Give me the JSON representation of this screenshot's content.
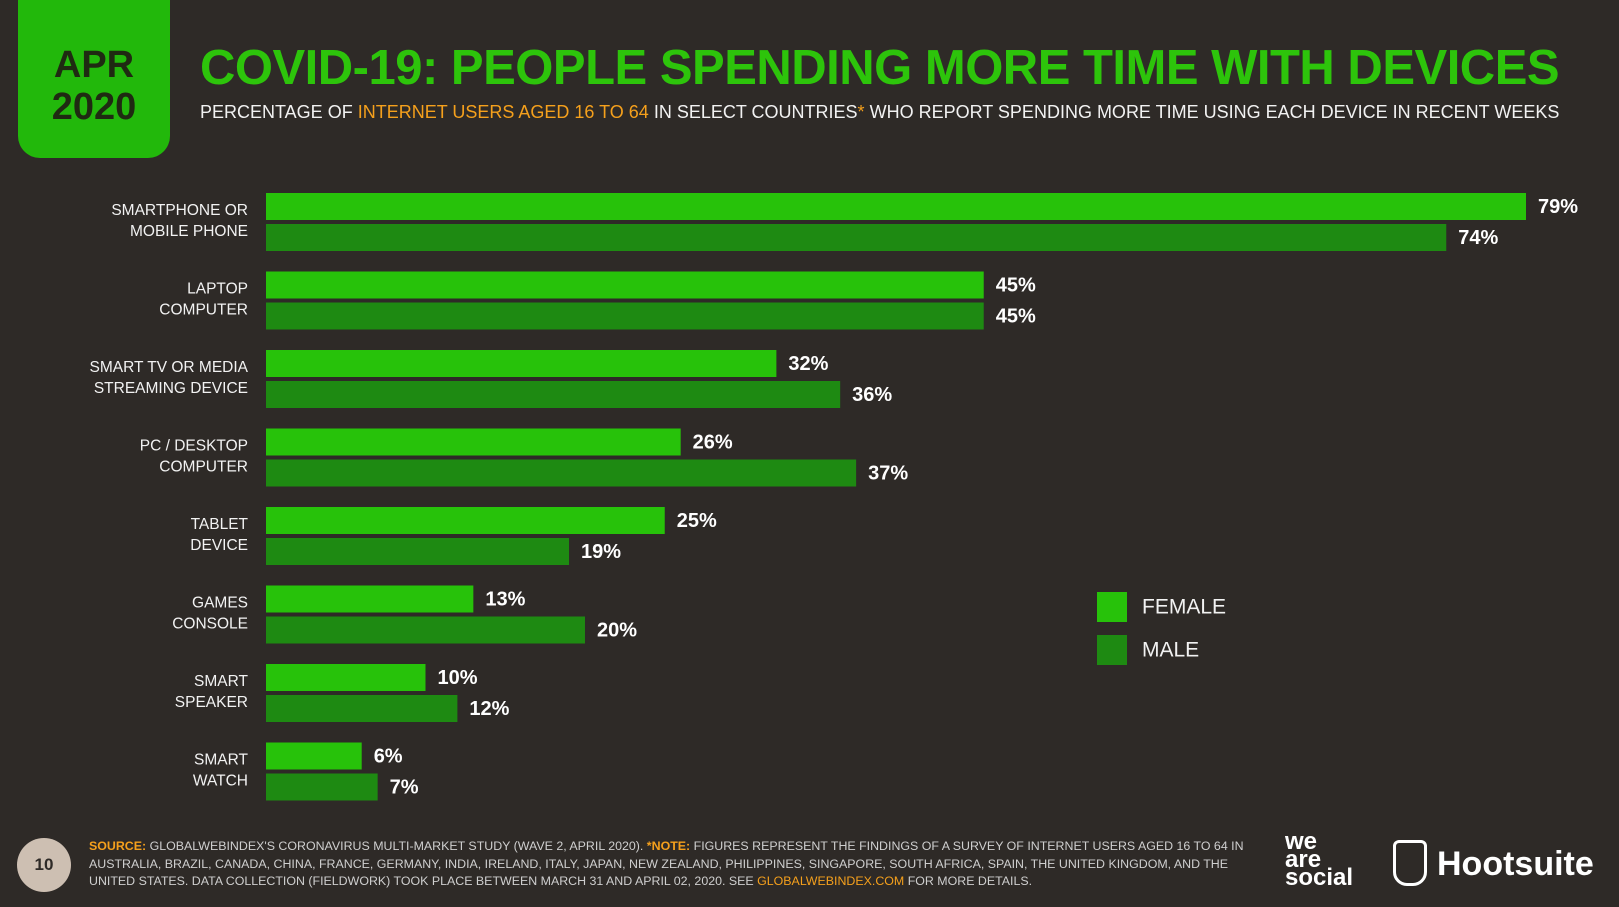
{
  "badge": {
    "month": "APR",
    "year": "2020"
  },
  "chart_data": {
    "type": "bar",
    "orientation": "horizontal",
    "title": "COVID-19: PEOPLE SPENDING MORE TIME WITH DEVICES",
    "subtitle": [
      "PERCENTAGE OF",
      "INTERNET USERS AGED 16 TO 64",
      "IN SELECT COUNTRIES",
      "*",
      "WHO REPORT SPENDING MORE TIME USING EACH DEVICE IN RECENT WEEKS"
    ],
    "categories": [
      [
        "SMARTPHONE OR",
        "MOBILE PHONE"
      ],
      [
        "LAPTOP",
        "COMPUTER"
      ],
      [
        "SMART TV OR MEDIA",
        "STREAMING DEVICE"
      ],
      [
        "PC / DESKTOP",
        "COMPUTER"
      ],
      [
        "TABLET",
        "DEVICE"
      ],
      [
        "GAMES",
        "CONSOLE"
      ],
      [
        "SMART",
        "SPEAKER"
      ],
      [
        "SMART",
        "WATCH"
      ]
    ],
    "series": [
      {
        "name": "FEMALE",
        "color": "#27c20a",
        "values": [
          79,
          45,
          32,
          26,
          25,
          13,
          10,
          6
        ],
        "value_labels": [
          "79%",
          "45%",
          "32%",
          "26%",
          "25%",
          "13%",
          "10%",
          "6%"
        ]
      },
      {
        "name": "MALE",
        "color": "#1e8a12",
        "values": [
          74,
          45,
          36,
          37,
          19,
          20,
          12,
          7
        ],
        "value_labels": [
          "74%",
          "45%",
          "36%",
          "37%",
          "19%",
          "20%",
          "12%",
          "7%"
        ]
      }
    ]
  },
  "footer": {
    "page": "10",
    "source_label": "SOURCE:",
    "source": "GLOBALWEBINDEX'S CORONAVIRUS MULTI-MARKET STUDY (WAVE 2, APRIL 2020).",
    "note_label": "*NOTE:",
    "note": "FIGURES REPRESENT THE FINDINGS OF A SURVEY OF INTERNET USERS AGED 16 TO 64 IN AUSTRALIA, BRAZIL, CANADA, CHINA, FRANCE, GERMANY, INDIA, IRELAND, ITALY, JAPAN, NEW ZEALAND, PHILIPPINES, SINGAPORE, SOUTH AFRICA, SPAIN, THE UNITED KINGDOM, AND THE UNITED STATES. DATA COLLECTION (FIELDWORK) TOOK PLACE BETWEEN MARCH 31 AND APRIL 02, 2020. SEE",
    "link": "GLOBALWEBINDEX.COM",
    "link_suffix": "FOR MORE DETAILS."
  },
  "branding": {
    "we": "we",
    "are": "are",
    "social": "social",
    "hootsuite": "Hootsuite"
  }
}
